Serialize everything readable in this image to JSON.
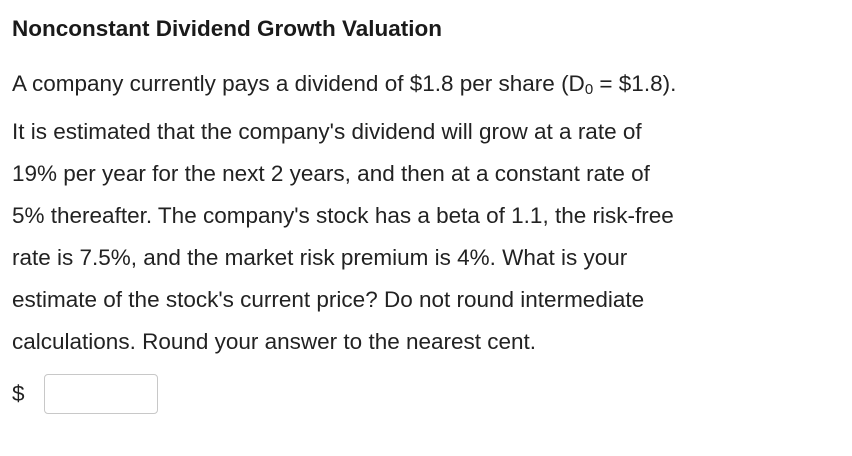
{
  "title": "Nonconstant Dividend Growth Valuation",
  "question": {
    "line1_pre": "A company currently pays a dividend of $1.8 per share (D",
    "line1_sub": "0",
    "line1_post": " = $1.8).",
    "line2": "It is estimated that the company's dividend will grow at a rate of",
    "line3": "19% per year for the next 2 years, and then at a constant rate of",
    "line4": "5% thereafter. The company's stock has a beta of 1.1, the risk-free",
    "line5": "rate is 7.5%, and the market risk premium is 4%. What is your",
    "line6": "estimate of the stock's current price? Do not round intermediate",
    "line7": "calculations. Round your answer to the nearest cent."
  },
  "answer": {
    "currency_symbol": "$",
    "value": "",
    "placeholder": ""
  }
}
